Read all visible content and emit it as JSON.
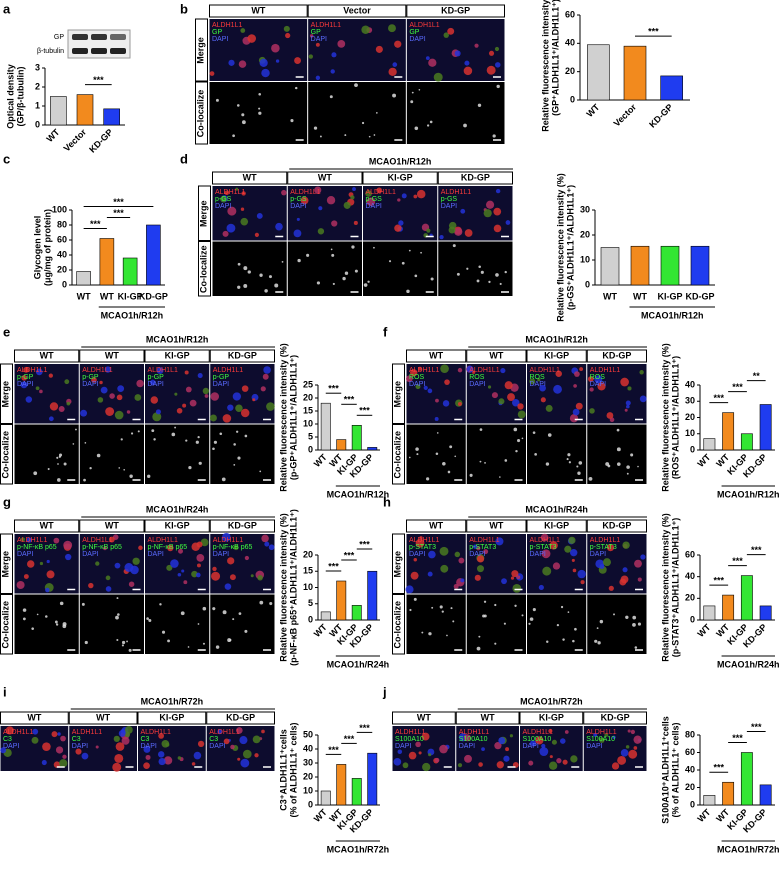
{
  "chart_data": [
    {
      "type": "bar",
      "ylabel": [
        "Optical density",
        "(GP/β-tubulin)"
      ],
      "categories": [
        "WT",
        "Vector",
        "KD-GP"
      ],
      "values": [
        1.5,
        1.6,
        0.85
      ],
      "colors": [
        "#d0d0d0",
        "#f28a1e",
        "#1f3cf0"
      ],
      "ylim": [
        0,
        3
      ],
      "yticks": [
        0,
        1,
        2,
        3
      ],
      "significance": [
        {
          "pair": [
            1,
            2
          ],
          "label": "***"
        }
      ]
    },
    {
      "type": "bar",
      "ylabel": [
        "Relative fluorescence intensity (%)",
        "(GP⁺ALDH1L1⁺/ALDH1L1⁺)"
      ],
      "categories": [
        "WT",
        "Vector",
        "KD-GP"
      ],
      "values": [
        39,
        38,
        17
      ],
      "colors": [
        "#d0d0d0",
        "#f28a1e",
        "#1f3cf0"
      ],
      "ylim": [
        0,
        60
      ],
      "yticks": [
        0,
        20,
        40,
        60
      ],
      "significance": [
        {
          "pair": [
            1,
            2
          ],
          "label": "***"
        }
      ]
    },
    {
      "type": "bar",
      "ylabel": [
        "Glycogen level",
        "(μg/mg of protein)"
      ],
      "categories": [
        "WT",
        "WT",
        "KI-GP",
        "KD-GP"
      ],
      "group": "MCAO1h/R12h",
      "values": [
        18,
        62,
        36,
        80
      ],
      "colors": [
        "#d0d0d0",
        "#f28a1e",
        "#33e633",
        "#1f3cf0"
      ],
      "ylim": [
        0,
        100
      ],
      "yticks": [
        0,
        20,
        40,
        60,
        80,
        100
      ],
      "significance": [
        {
          "pair": [
            0,
            1
          ],
          "label": "***"
        },
        {
          "pair": [
            1,
            2
          ],
          "label": "***"
        },
        {
          "pair": [
            0,
            3
          ],
          "label": "***"
        }
      ]
    },
    {
      "type": "bar",
      "ylabel": [
        "Relative fluorescence intensity (%)",
        "(p-GS⁺ALDH1L1⁺/ALDH1L1⁺)"
      ],
      "categories": [
        "WT",
        "WT",
        "KI-GP",
        "KD-GP"
      ],
      "group": "MCAO1h/R12h",
      "values": [
        15,
        15.5,
        15.5,
        15.5
      ],
      "colors": [
        "#d0d0d0",
        "#f28a1e",
        "#33e633",
        "#1f3cf0"
      ],
      "ylim": [
        0,
        30
      ],
      "yticks": [
        0,
        10,
        20,
        30
      ],
      "significance": []
    },
    {
      "type": "bar",
      "ylabel": [
        "Relative fluorescence intensity (%)",
        "(p-GP⁺ALDH1L1⁺/ALDH1L1⁺)"
      ],
      "categories": [
        "WT",
        "WT",
        "KI-GP",
        "KD-GP"
      ],
      "group": "MCAO1h/R12h",
      "values": [
        18,
        4,
        9.5,
        1
      ],
      "colors": [
        "#d0d0d0",
        "#f28a1e",
        "#33e633",
        "#1f3cf0"
      ],
      "ylim": [
        0,
        25
      ],
      "yticks": [
        0,
        5,
        10,
        15,
        20,
        25
      ],
      "significance": [
        {
          "pair": [
            2,
            3
          ],
          "label": "***"
        },
        {
          "pair": [
            1,
            2
          ],
          "label": "***"
        },
        {
          "pair": [
            0,
            1
          ],
          "label": "***"
        }
      ]
    },
    {
      "type": "bar",
      "ylabel": [
        "Relative fluorescence intensity (%)",
        "(ROS⁺ALDH1L1⁺/ALDH1L1⁺)"
      ],
      "categories": [
        "WT",
        "WT",
        "KI-GP",
        "KD-GP"
      ],
      "group": "MCAO1h/R12h",
      "values": [
        7,
        23,
        10,
        28
      ],
      "colors": [
        "#d0d0d0",
        "#f28a1e",
        "#33e633",
        "#1f3cf0"
      ],
      "ylim": [
        0,
        40
      ],
      "yticks": [
        0,
        10,
        20,
        30,
        40
      ],
      "significance": [
        {
          "pair": [
            0,
            1
          ],
          "label": "***"
        },
        {
          "pair": [
            1,
            2
          ],
          "label": "***"
        },
        {
          "pair": [
            2,
            3
          ],
          "label": "**"
        }
      ]
    },
    {
      "type": "bar",
      "ylabel": [
        "Relative fluorescence intensity (%)",
        "(p-NF-κB p65⁺ALDH1L1⁺/ALDH1L1⁺)"
      ],
      "categories": [
        "WT",
        "WT",
        "KI-GP",
        "KD-GP"
      ],
      "group": "MCAO1h/R24h",
      "values": [
        2.5,
        12,
        4.5,
        15
      ],
      "colors": [
        "#d0d0d0",
        "#f28a1e",
        "#33e633",
        "#1f3cf0"
      ],
      "ylim": [
        0,
        20
      ],
      "yticks": [
        0,
        5,
        10,
        15,
        20
      ],
      "significance": [
        {
          "pair": [
            0,
            1
          ],
          "label": "***"
        },
        {
          "pair": [
            1,
            2
          ],
          "label": "***"
        },
        {
          "pair": [
            2,
            3
          ],
          "label": "***"
        }
      ]
    },
    {
      "type": "bar",
      "ylabel": [
        "Relative fluorescence intensity (%)",
        "(p-STAT3⁺ALDH1L1⁺/ALDH1L1⁺)"
      ],
      "categories": [
        "WT",
        "WT",
        "KI-GP",
        "KD-GP"
      ],
      "group": "MCAO1h/R24h",
      "values": [
        13,
        23,
        41,
        13
      ],
      "colors": [
        "#d0d0d0",
        "#f28a1e",
        "#33e633",
        "#1f3cf0"
      ],
      "ylim": [
        0,
        60
      ],
      "yticks": [
        0,
        20,
        40,
        60
      ],
      "significance": [
        {
          "pair": [
            0,
            1
          ],
          "label": "***"
        },
        {
          "pair": [
            1,
            2
          ],
          "label": "***"
        },
        {
          "pair": [
            2,
            3
          ],
          "label": "***"
        }
      ]
    },
    {
      "type": "bar",
      "ylabel": [
        "C3⁺ALDH1L1⁺cells",
        "(% of ALDH1L1⁺ cells)"
      ],
      "categories": [
        "WT",
        "WT",
        "KI-GP",
        "KD-GP"
      ],
      "group": "MCAO1h/R72h",
      "values": [
        10,
        29,
        19,
        37
      ],
      "colors": [
        "#d0d0d0",
        "#f28a1e",
        "#33e633",
        "#1f3cf0"
      ],
      "ylim": [
        0,
        50
      ],
      "yticks": [
        0,
        10,
        20,
        30,
        40,
        50
      ],
      "significance": [
        {
          "pair": [
            0,
            1
          ],
          "label": "***"
        },
        {
          "pair": [
            1,
            2
          ],
          "label": "***"
        },
        {
          "pair": [
            2,
            3
          ],
          "label": "***"
        }
      ]
    },
    {
      "type": "bar",
      "ylabel": [
        "S100A10⁺ALDH1L1⁺cells",
        "(% of ALDH1L1⁺ cells)"
      ],
      "categories": [
        "WT",
        "WT",
        "KI-GP",
        "KD-GP"
      ],
      "group": "MCAO1h/R72h",
      "values": [
        11,
        26,
        60,
        23
      ],
      "colors": [
        "#d0d0d0",
        "#f28a1e",
        "#33e633",
        "#1f3cf0"
      ],
      "ylim": [
        0,
        80
      ],
      "yticks": [
        0,
        20,
        40,
        60,
        80
      ],
      "significance": [
        {
          "pair": [
            0,
            1
          ],
          "label": "***"
        },
        {
          "pair": [
            1,
            2
          ],
          "label": "***"
        },
        {
          "pair": [
            2,
            3
          ],
          "label": "***"
        }
      ]
    }
  ],
  "panels": [
    {
      "letter": "a",
      "blot": [
        "GP",
        "β-tubulin"
      ]
    },
    {
      "letter": "b",
      "columns": [
        "WT",
        "Vector",
        "KD-GP"
      ],
      "rows": [
        "Merge",
        "Co-localize"
      ],
      "channels": [
        "ALDH1L1",
        "GP",
        "DAPI"
      ]
    },
    {
      "letter": "c"
    },
    {
      "letter": "d",
      "group": "MCAO1h/R12h",
      "columns": [
        "WT",
        "WT",
        "KI-GP",
        "KD-GP"
      ],
      "rows": [
        "Merge",
        "Co-localize"
      ],
      "channels": [
        "ALDH1L1",
        "p-GS",
        "DAPI"
      ]
    },
    {
      "letter": "e",
      "group": "MCAO1h/R12h",
      "columns": [
        "WT",
        "WT",
        "KI-GP",
        "KD-GP"
      ],
      "rows": [
        "Merge",
        "Co-localize"
      ],
      "channels": [
        "ALDH1L1",
        "p-GP",
        "DAPI"
      ]
    },
    {
      "letter": "f",
      "group": "MCAO1h/R12h",
      "columns": [
        "WT",
        "WT",
        "KI-GP",
        "KD-GP"
      ],
      "rows": [
        "Merge",
        "Co-localize"
      ],
      "channels": [
        "ALDH1L1",
        "ROS",
        "DAPI"
      ]
    },
    {
      "letter": "g",
      "group": "MCAO1h/R24h",
      "columns": [
        "WT",
        "WT",
        "KI-GP",
        "KD-GP"
      ],
      "rows": [
        "Merge",
        "Co-localize"
      ],
      "channels": [
        "ALDH1L1",
        "p-NF-κB p65",
        "DAPI"
      ]
    },
    {
      "letter": "h",
      "group": "MCAO1h/R24h",
      "columns": [
        "WT",
        "WT",
        "KI-GP",
        "KD-GP"
      ],
      "rows": [
        "Merge",
        "Co-localize"
      ],
      "channels": [
        "ALDH1L1",
        "p-STAT3",
        "DAPI"
      ]
    },
    {
      "letter": "i",
      "group": "MCAO1h/R72h",
      "columns": [
        "WT",
        "WT",
        "KI-GP",
        "KD-GP"
      ],
      "channels": [
        "ALDH1L1",
        "C3",
        "DAPI"
      ]
    },
    {
      "letter": "j",
      "group": "MCAO1h/R72h",
      "columns": [
        "WT",
        "WT",
        "KI-GP",
        "KD-GP"
      ],
      "channels": [
        "ALDH1L1",
        "S100A10",
        "DAPI"
      ]
    }
  ]
}
